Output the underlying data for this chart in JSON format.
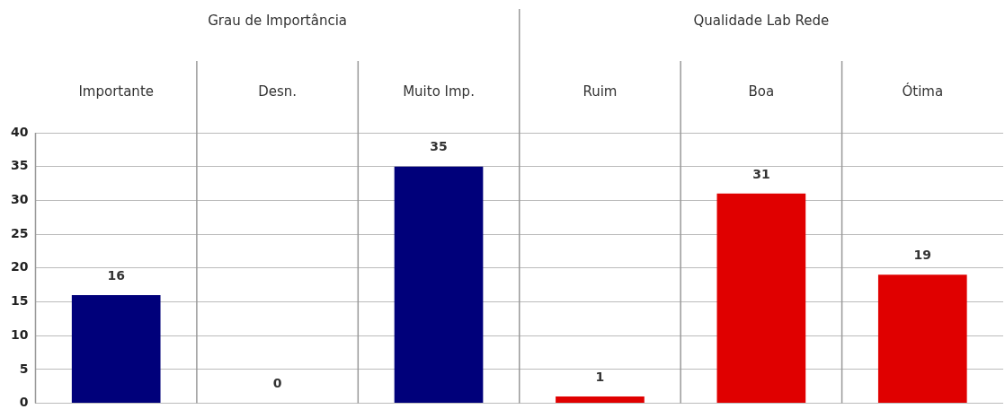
{
  "chart_data": {
    "type": "bar",
    "categories": [
      "Importante",
      "Desn.",
      "Muito Imp.",
      "Ruim",
      "Boa",
      "Ótima"
    ],
    "values": [
      16,
      0,
      35,
      1,
      31,
      19
    ],
    "colors": [
      "#00007a",
      "#00007a",
      "#00007a",
      "#e00000",
      "#e00000",
      "#e00000"
    ],
    "ylim": [
      0,
      40
    ],
    "yticks": [
      0,
      5,
      10,
      15,
      20,
      25,
      30,
      35,
      40
    ],
    "grid": true,
    "data_labels": true,
    "annotations": [
      "Grau de Importância",
      "Qualidade Lab Rede"
    ]
  }
}
